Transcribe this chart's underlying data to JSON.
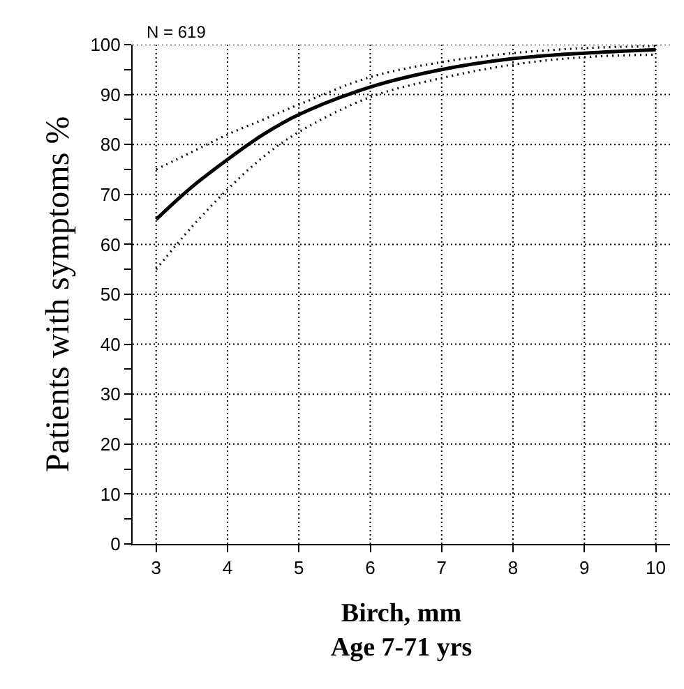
{
  "chart_data": {
    "type": "line",
    "xlabel": "Birch, mm\nAge 7-71 yrs",
    "ylabel": "Patients with symptoms %",
    "annotations": [
      "N = 619"
    ],
    "x": [
      3,
      3.5,
      4,
      4.5,
      5,
      6,
      7,
      8,
      9,
      10
    ],
    "series": [
      {
        "color": "#000000",
        "line_style": "dotted",
        "values": [
          75,
          78.5,
          82,
          85,
          88,
          93.5,
          96.5,
          98.3,
          99.3,
          99.7
        ]
      },
      {
        "color": "#000000",
        "line_style": "solid",
        "values": [
          65,
          71.5,
          77,
          82,
          86,
          91.5,
          95,
          97.2,
          98.3,
          99
        ]
      },
      {
        "color": "#000000",
        "line_style": "dotted",
        "values": [
          55,
          63.5,
          71,
          77.5,
          82.5,
          89.5,
          93.3,
          96,
          97.5,
          98
        ]
      }
    ],
    "xlim": [
      2.67,
      10.2
    ],
    "ylim": [
      0,
      100
    ],
    "xticks": [
      3,
      4,
      5,
      6,
      7,
      8,
      9,
      10
    ],
    "yticks": [
      0,
      {
        "value": 5,
        "label": null
      },
      10,
      {
        "value": 15,
        "label": null
      },
      20,
      {
        "value": 25,
        "label": null
      },
      30,
      {
        "value": 35,
        "label": null
      },
      40,
      {
        "value": 45,
        "label": null
      },
      50,
      {
        "value": 55,
        "label": null
      },
      60,
      {
        "value": 65,
        "label": null
      },
      70,
      {
        "value": 75,
        "label": null
      },
      80,
      {
        "value": 85,
        "label": null
      },
      90,
      {
        "value": 95,
        "label": null
      },
      100
    ],
    "grid": true,
    "marker": "none"
  }
}
